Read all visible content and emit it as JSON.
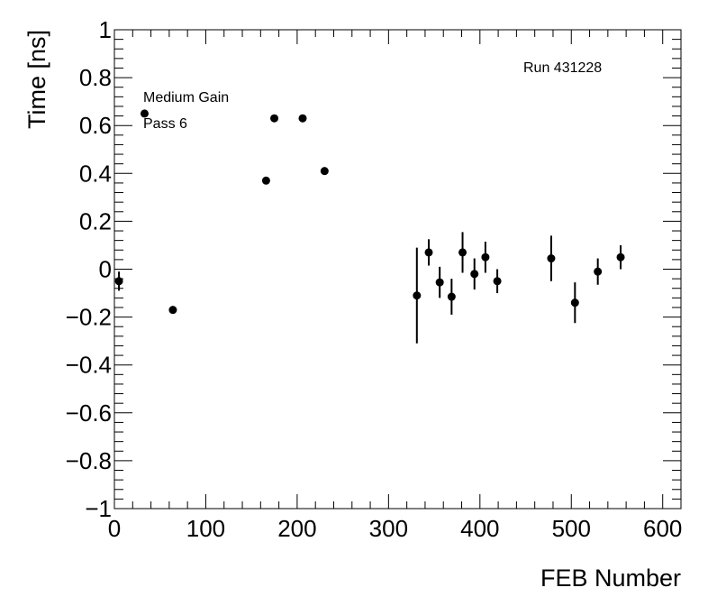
{
  "chart_data": {
    "type": "scatter",
    "title": "",
    "xlabel": "FEB Number",
    "ylabel": "Time [ns]",
    "xlim": [
      0,
      620
    ],
    "ylim": [
      -1,
      1
    ],
    "grid": false,
    "x_ticks": [
      0,
      100,
      200,
      300,
      400,
      500,
      600
    ],
    "y_ticks": [
      -1,
      -0.8,
      -0.6,
      -0.4,
      -0.2,
      0,
      0.2,
      0.4,
      0.6,
      0.8,
      1
    ],
    "y_tick_labels": [
      "−1",
      "−0.8",
      "−0.6",
      "−0.4",
      "−0.2",
      "0",
      "0.2",
      "0.4",
      "0.6",
      "0.8",
      "1"
    ],
    "annotations": {
      "run": "Run 431228",
      "gain": "Medium Gain",
      "pass": "Pass 6"
    },
    "series": [
      {
        "points": [
          {
            "x": 5,
            "y": -0.05,
            "err": 0.04
          },
          {
            "x": 33,
            "y": 0.65,
            "err": 0
          },
          {
            "x": 64,
            "y": -0.17,
            "err": 0
          },
          {
            "x": 166,
            "y": 0.37,
            "err": 0
          },
          {
            "x": 175,
            "y": 0.63,
            "err": 0
          },
          {
            "x": 206,
            "y": 0.63,
            "err": 0
          },
          {
            "x": 230,
            "y": 0.41,
            "err": 0
          },
          {
            "x": 331,
            "y": -0.11,
            "err": 0.2
          },
          {
            "x": 344,
            "y": 0.07,
            "err": 0.055
          },
          {
            "x": 356,
            "y": -0.055,
            "err": 0.065
          },
          {
            "x": 369,
            "y": -0.115,
            "err": 0.075
          },
          {
            "x": 381,
            "y": 0.07,
            "err": 0.085
          },
          {
            "x": 394,
            "y": -0.02,
            "err": 0.065
          },
          {
            "x": 406,
            "y": 0.05,
            "err": 0.065
          },
          {
            "x": 419,
            "y": -0.05,
            "err": 0.05
          },
          {
            "x": 478,
            "y": 0.045,
            "err": 0.095
          },
          {
            "x": 504,
            "y": -0.14,
            "err": 0.085
          },
          {
            "x": 529,
            "y": -0.01,
            "err": 0.055
          },
          {
            "x": 554,
            "y": 0.05,
            "err": 0.05
          }
        ]
      }
    ]
  }
}
